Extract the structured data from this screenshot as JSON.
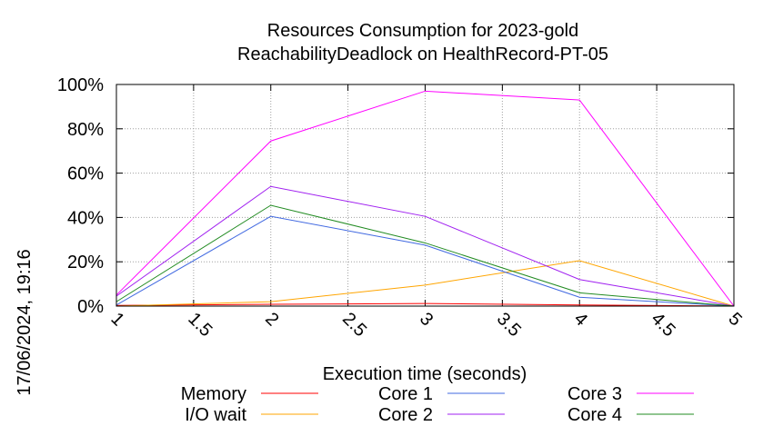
{
  "chart_data": {
    "type": "line",
    "title_line1": "Resources Consumption for 2023-gold",
    "title_line2": "ReachabilityDeadlock on HealthRecord-PT-05",
    "xlabel": "Execution time (seconds)",
    "ylabel": "",
    "xlim": [
      1,
      5
    ],
    "ylim": [
      0,
      100
    ],
    "x_ticks": [
      "1",
      "1.5",
      "2",
      "2.5",
      "3",
      "3.5",
      "4",
      "4.5",
      "5"
    ],
    "y_ticks": [
      "0%",
      "20%",
      "40%",
      "60%",
      "80%",
      "100%"
    ],
    "grid": true,
    "legend_position": "bottom",
    "x": [
      1,
      2,
      3,
      4,
      5
    ],
    "series": [
      {
        "name": "Memory",
        "color": "#ff0000",
        "values": [
          0.3,
          0.8,
          1.2,
          0.5,
          0
        ]
      },
      {
        "name": "I/O wait",
        "color": "#ffa500",
        "values": [
          0,
          2,
          9.5,
          20.5,
          0
        ]
      },
      {
        "name": "Core 1",
        "color": "#4169e1",
        "values": [
          0.5,
          40.5,
          27.5,
          4,
          0
        ]
      },
      {
        "name": "Core 2",
        "color": "#a020f0",
        "values": [
          4.5,
          54,
          40.5,
          12,
          0
        ]
      },
      {
        "name": "Core 3",
        "color": "#ff00ff",
        "values": [
          5,
          74.5,
          97,
          93,
          0
        ]
      },
      {
        "name": "Core 4",
        "color": "#228b22",
        "values": [
          2,
          45.5,
          28.5,
          6,
          0
        ]
      }
    ]
  },
  "timestamp": "17/06/2024, 19:16"
}
